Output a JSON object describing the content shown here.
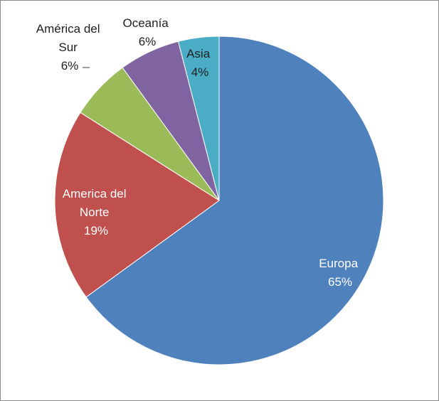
{
  "chart_data": {
    "type": "pie",
    "title": "",
    "start_angle_deg": 0,
    "direction": "clockwise",
    "legend": "none",
    "slices": [
      {
        "name": "Europa",
        "value": 65,
        "label_lines": [
          "Europa",
          "65%"
        ],
        "color": "#4F81BD"
      },
      {
        "name": "America del Norte",
        "value": 19,
        "label_lines": [
          "America del",
          "Norte",
          "19%"
        ],
        "color": "#C0504D"
      },
      {
        "name": "América del Sur",
        "value": 6,
        "label_lines": [
          "América del",
          "Sur",
          "6%"
        ],
        "color": "#9BBB59"
      },
      {
        "name": "Oceanía",
        "value": 6,
        "label_lines": [
          "Oceanía",
          "6%"
        ],
        "color": "#8064A2"
      },
      {
        "name": "Asia",
        "value": 4,
        "label_lines": [
          "Asia",
          "4%"
        ],
        "color": "#4BACC6"
      }
    ]
  }
}
